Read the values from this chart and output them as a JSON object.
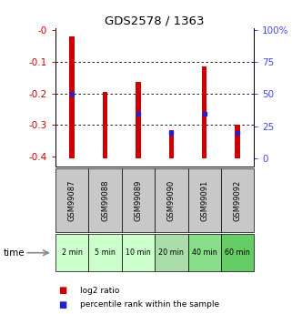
{
  "title": "GDS2578 / 1363",
  "samples": [
    "GSM99087",
    "GSM99088",
    "GSM99089",
    "GSM99090",
    "GSM99091",
    "GSM99092"
  ],
  "timepoints": [
    "2 min",
    "5 min",
    "10 min",
    "20 min",
    "40 min",
    "60 min"
  ],
  "log2_top": [
    -0.02,
    -0.195,
    -0.165,
    -0.315,
    -0.115,
    -0.3
  ],
  "log2_bottom": [
    -0.405,
    -0.405,
    -0.405,
    -0.405,
    -0.405,
    -0.405
  ],
  "percentile_rank_val": [
    -0.2,
    null,
    -0.265,
    -0.325,
    -0.265,
    -0.325
  ],
  "ylim": [
    -0.43,
    0.005
  ],
  "left_yticks": [
    0,
    -0.1,
    -0.2,
    -0.3,
    -0.4
  ],
  "left_yticklabels": [
    "-0",
    "-0.1",
    "-0.2",
    "-0.3",
    "-0.4"
  ],
  "right_yticks_pct": [
    0,
    25,
    50,
    75,
    100
  ],
  "right_yticklabels": [
    "0",
    "25",
    "50",
    "75",
    "100%"
  ],
  "bar_color": "#cc0000",
  "dot_color": "#2222cc",
  "left_tick_color": "#cc0000",
  "right_tick_color": "#4444ff",
  "bg_gray": "#c8c8c8",
  "time_colors": [
    "#ccffcc",
    "#ccffcc",
    "#ccffcc",
    "#aaddaa",
    "#88dd88",
    "#66cc66"
  ],
  "bar_width": 0.15
}
